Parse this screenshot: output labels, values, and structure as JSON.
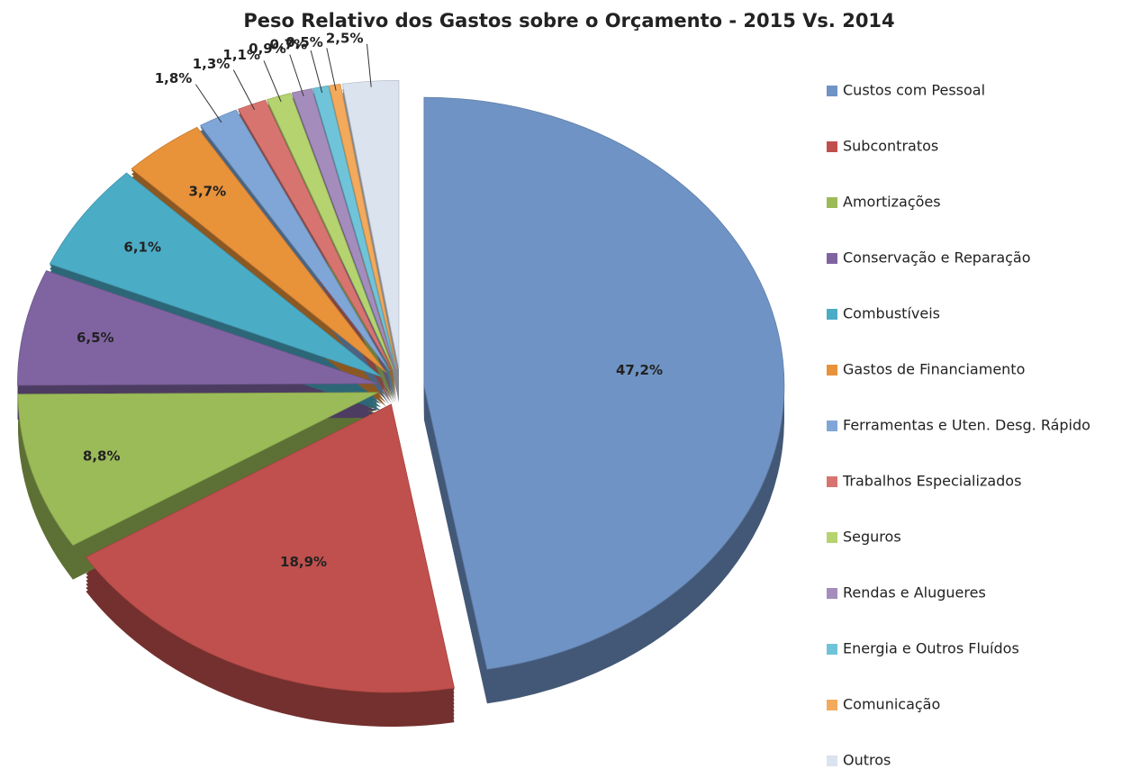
{
  "chart_data": {
    "type": "pie",
    "title": "Peso Relativo dos Gastos sobre o Orçamento - 2015 Vs. 2014",
    "categories": [
      "Custos com Pessoal",
      "Subcontratos",
      "Amortizações",
      "Conservação e Reparação",
      "Combustíveis",
      "Gastos de Financiamento",
      "Ferramentas e Uten. Desg. Rápido",
      "Trabalhos Especializados",
      "Seguros",
      "Rendas e Alugueres",
      "Energia e Outros Fluídos",
      "Comunicação",
      "Outros"
    ],
    "values": [
      47.2,
      18.9,
      8.8,
      6.5,
      6.1,
      3.7,
      1.8,
      1.3,
      1.1,
      0.9,
      0.7,
      0.5,
      2.5
    ],
    "value_labels": [
      "47,2%",
      "18,9%",
      "8,8%",
      "6,5%",
      "6,1%",
      "3,7%",
      "1,8%",
      "1,3%",
      "1,1%",
      "0,9%",
      "0,7%",
      "0,5%",
      "2,5%"
    ],
    "colors": [
      "#6f93c4",
      "#c0504d",
      "#9bbb59",
      "#8064a2",
      "#4bacc6",
      "#e8923a",
      "#7fa6d6",
      "#d87470",
      "#b5d36f",
      "#a48dbd",
      "#6fc4d9",
      "#f3aa5c",
      "#dbe3ef"
    ],
    "legend": "right"
  }
}
